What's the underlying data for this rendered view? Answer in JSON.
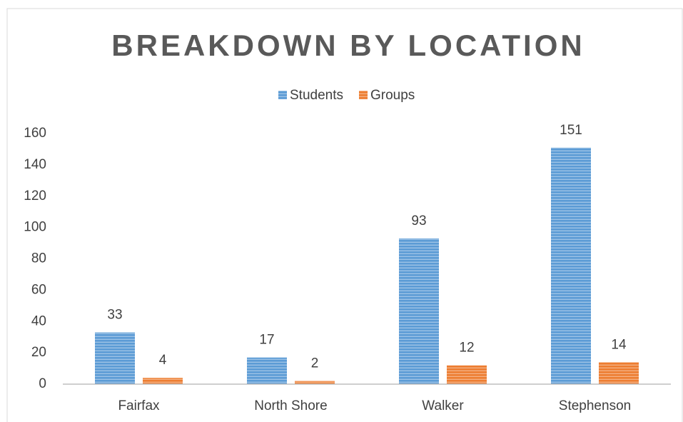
{
  "chart_data": {
    "type": "bar",
    "title": "BREAKDOWN BY LOCATION",
    "categories": [
      "Fairfax",
      "North Shore",
      "Walker",
      "Stephenson"
    ],
    "series": [
      {
        "name": "Students",
        "color": "#5b9bd5",
        "values": [
          33,
          17,
          93,
          151
        ]
      },
      {
        "name": "Groups",
        "color": "#ed7d31",
        "values": [
          4,
          2,
          12,
          14
        ]
      }
    ],
    "ylim": [
      0,
      160
    ],
    "yticks": [
      0,
      20,
      40,
      60,
      80,
      100,
      120,
      140,
      160
    ],
    "grid": false,
    "legend": "top",
    "data_labels": true
  }
}
